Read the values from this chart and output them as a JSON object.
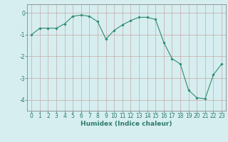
{
  "x": [
    0,
    1,
    2,
    3,
    4,
    5,
    6,
    7,
    8,
    9,
    10,
    11,
    12,
    13,
    14,
    15,
    16,
    17,
    18,
    19,
    20,
    21,
    22,
    23
  ],
  "y": [
    -1.0,
    -0.7,
    -0.7,
    -0.7,
    -0.5,
    -0.15,
    -0.1,
    -0.15,
    -0.4,
    -1.2,
    -0.8,
    -0.55,
    -0.35,
    -0.2,
    -0.2,
    -0.3,
    -1.35,
    -2.1,
    -2.35,
    -3.55,
    -3.9,
    -3.95,
    -2.85,
    -2.35
  ],
  "line_color": "#2e8b6e",
  "marker": "D",
  "marker_size": 1.8,
  "bg_color": "#d6eef0",
  "grid_color": "#b8d8da",
  "axis_color": "#2e7a6a",
  "tick_color": "#2e7a6a",
  "xlabel": "Humidex (Indice chaleur)",
  "xlim": [
    -0.5,
    23.5
  ],
  "ylim": [
    -4.5,
    0.4
  ],
  "yticks": [
    0,
    -1,
    -2,
    -3,
    -4
  ],
  "xticks": [
    0,
    1,
    2,
    3,
    4,
    5,
    6,
    7,
    8,
    9,
    10,
    11,
    12,
    13,
    14,
    15,
    16,
    17,
    18,
    19,
    20,
    21,
    22,
    23
  ],
  "label_fontsize": 6.5,
  "tick_fontsize": 5.5
}
